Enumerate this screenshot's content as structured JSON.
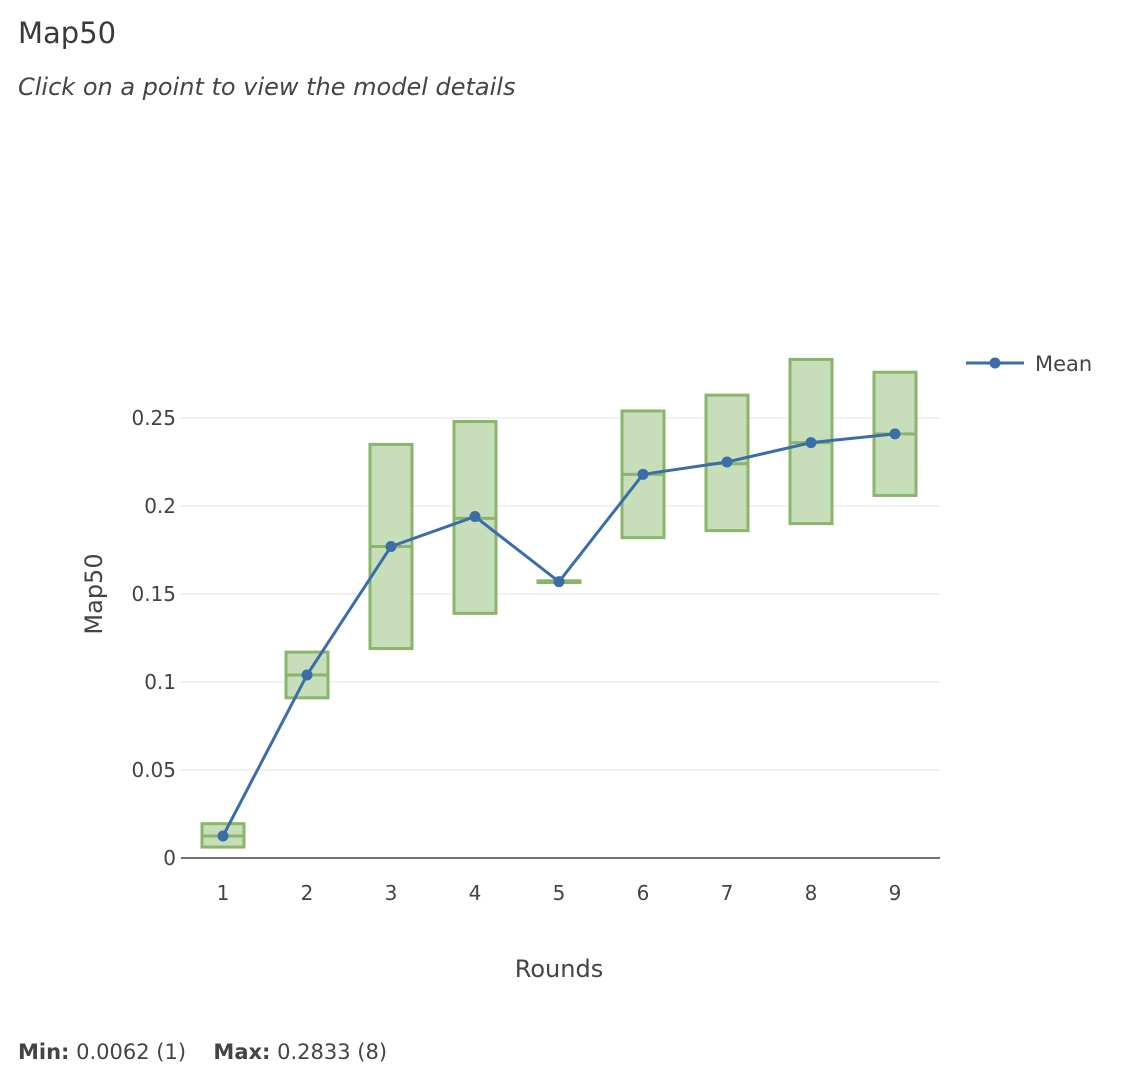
{
  "header": {
    "title": "Map50",
    "subtitle": "Click on a point to view the model details"
  },
  "stats": {
    "min_label": "Min:",
    "min_value": "0.0062 (1)",
    "max_label": "Max:",
    "max_value": "0.2833 (8)"
  },
  "colors": {
    "line": "#3b6ea8",
    "box_fill": "#c8ddb9",
    "box_stroke": "#8ab56c",
    "grid": "#e6e6e6",
    "axis": "#444444"
  },
  "chart_data": {
    "type": "line",
    "xlabel": "Rounds",
    "ylabel": "Map50",
    "ylim": [
      0,
      0.29
    ],
    "yticks": [
      0,
      0.05,
      0.1,
      0.15,
      0.2,
      0.25
    ],
    "ytick_labels": [
      "0",
      "0.05",
      "0.1",
      "0.15",
      "0.2",
      "0.25"
    ],
    "categories": [
      "1",
      "2",
      "3",
      "4",
      "5",
      "6",
      "7",
      "8",
      "9"
    ],
    "grid": true,
    "legend_position": "top-right",
    "series": [
      {
        "name": "Mean",
        "values": [
          0.0125,
          0.104,
          0.177,
          0.194,
          0.157,
          0.218,
          0.225,
          0.236,
          0.241
        ]
      }
    ],
    "ranges": [
      {
        "low": 0.0062,
        "high": 0.0195,
        "mid": 0.0125
      },
      {
        "low": 0.091,
        "high": 0.117,
        "mid": 0.104
      },
      {
        "low": 0.119,
        "high": 0.235,
        "mid": 0.177
      },
      {
        "low": 0.139,
        "high": 0.248,
        "mid": 0.193
      },
      {
        "low": 0.1565,
        "high": 0.1575,
        "mid": 0.157
      },
      {
        "low": 0.182,
        "high": 0.254,
        "mid": 0.218
      },
      {
        "low": 0.186,
        "high": 0.263,
        "mid": 0.224
      },
      {
        "low": 0.19,
        "high": 0.2833,
        "mid": 0.236
      },
      {
        "low": 0.206,
        "high": 0.276,
        "mid": 0.241
      }
    ]
  }
}
